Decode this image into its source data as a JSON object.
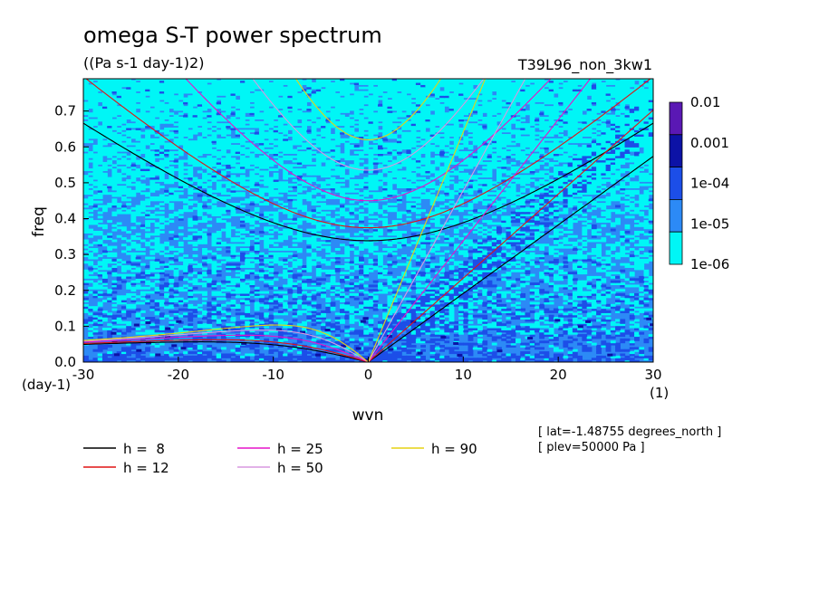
{
  "chart_data": {
    "type": "heatmap",
    "title": "omega S-T power spectrum",
    "subtitle": "((Pa s-1 day-1)2)",
    "run_label": "T39L96_non_3kw1",
    "xlabel": "wvn",
    "ylabel": "freq",
    "x_unit": "(1)",
    "y_unit": "(day-1)",
    "xlim": [
      -30,
      30
    ],
    "ylim": [
      0,
      0.79
    ],
    "x_ticks": [
      "-30",
      "-20",
      "-10",
      "0",
      "10",
      "20",
      "30"
    ],
    "x_tick_values": [
      -30,
      -20,
      -10,
      0,
      10,
      20,
      30
    ],
    "y_ticks": [
      "0.0",
      "0.1",
      "0.2",
      "0.3",
      "0.4",
      "0.5",
      "0.6",
      "0.7"
    ],
    "y_tick_values": [
      0,
      0.1,
      0.2,
      0.3,
      0.4,
      0.5,
      0.6,
      0.7
    ],
    "colorbar": {
      "labels": [
        "0.01",
        "0.001",
        "1e-04",
        "1e-05",
        "1e-06"
      ],
      "levels": [
        0.01,
        0.001,
        0.0001,
        1e-05,
        1e-06
      ],
      "colors": [
        "#5a18b4",
        "#0c12a6",
        "#1c4ee8",
        "#2c8af6",
        "#00f6f6"
      ],
      "scale": "log"
    },
    "field_description": "Power mostly 1e-05 to 1e-04 (blue) at low frequency, patchy cyan (1e-06 to 1e-05) above freq 0.45; enhanced power (1e-04 to 0.001) along Kelvin wave curves and near freq 0.",
    "dispersion_curves": [
      {
        "name": "h =  8",
        "h": 8,
        "color": "#000000"
      },
      {
        "name": "h = 12",
        "h": 12,
        "color": "#e01414"
      },
      {
        "name": "h = 25",
        "h": 25,
        "color": "#e614c8"
      },
      {
        "name": "h = 50",
        "h": 50,
        "color": "#d898e0"
      },
      {
        "name": "h = 90",
        "h": 90,
        "color": "#e6d214"
      }
    ],
    "annotations": [
      "[ lat=-1.48755 degrees_north ]",
      "[ plev=50000 Pa ]"
    ],
    "grid": false,
    "legend_placement": "bottom-left"
  }
}
